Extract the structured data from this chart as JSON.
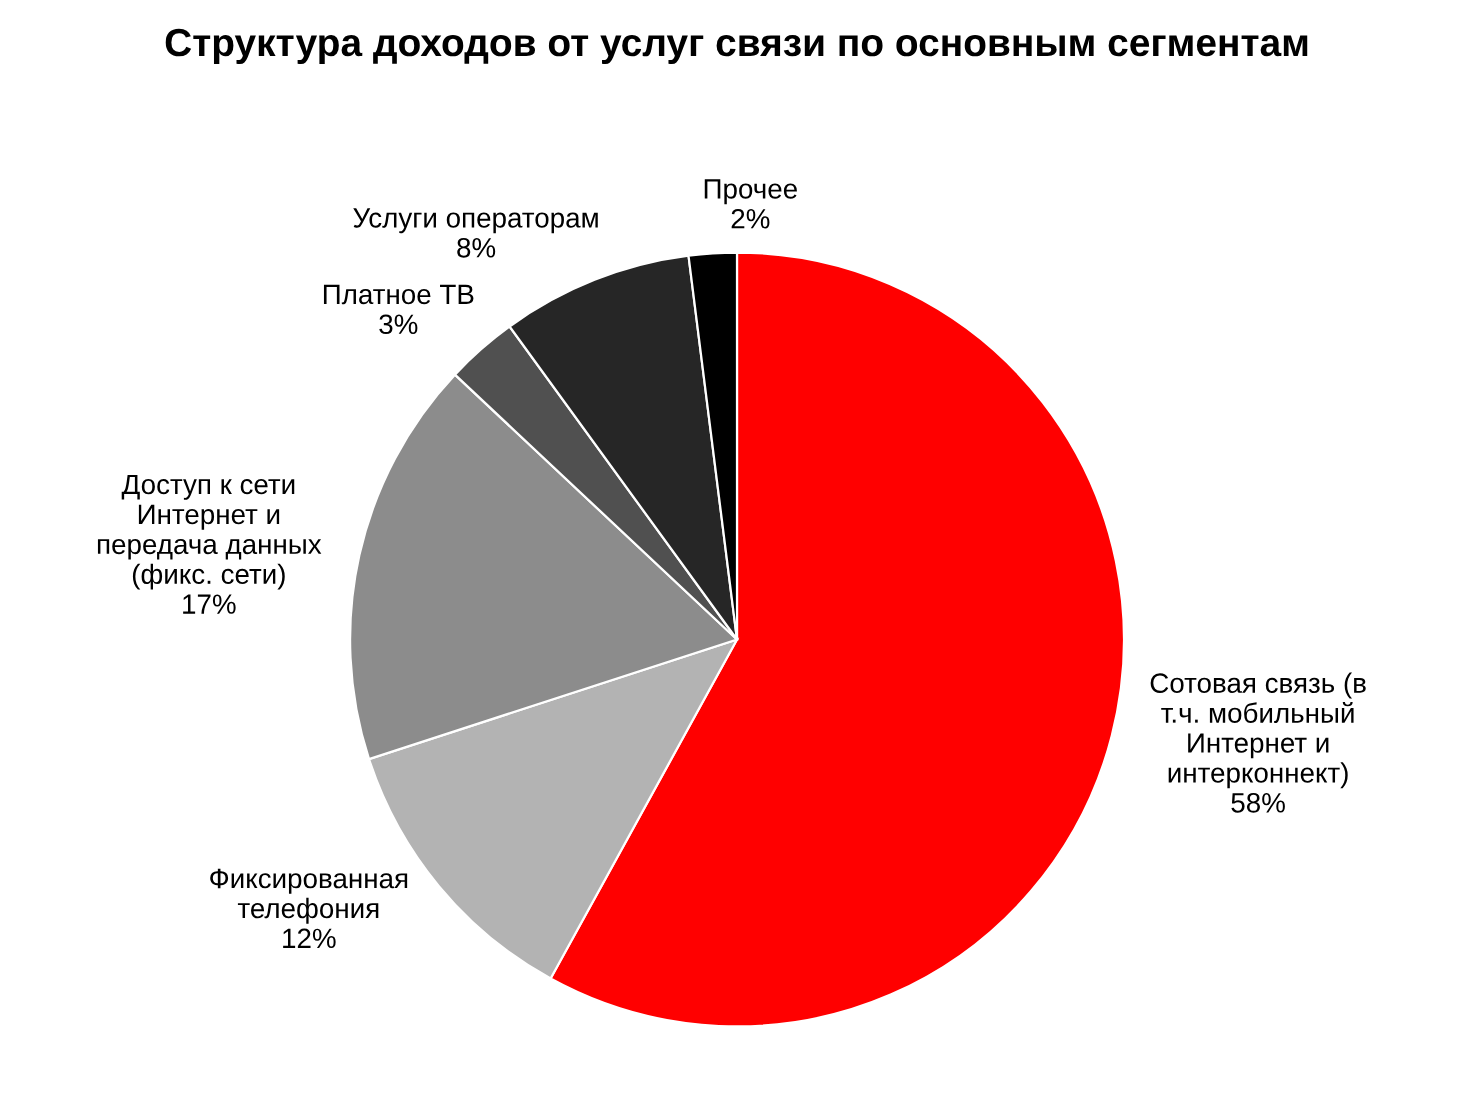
{
  "chart_data": {
    "type": "pie",
    "title": "Структура доходов от услуг связи по основным сегментам",
    "categories": [
      "Сотовая связь (в\nт.ч. мобильный\nИнтернет и\nинтерконнект)",
      "Фиксированная\nтелефония",
      "Доступ к сети\nИнтернет и\nпередача данных\n(фикс. сети)",
      "Платное ТВ",
      "Услуги операторам",
      "Прочее"
    ],
    "values": [
      58,
      12,
      17,
      3,
      8,
      2
    ],
    "value_labels": [
      "58%",
      "12%",
      "17%",
      "3%",
      "8%",
      "2%"
    ],
    "colors": [
      "#ff0000",
      "#b3b3b3",
      "#8c8c8c",
      "#505050",
      "#262626",
      "#000000"
    ],
    "legend": false
  }
}
